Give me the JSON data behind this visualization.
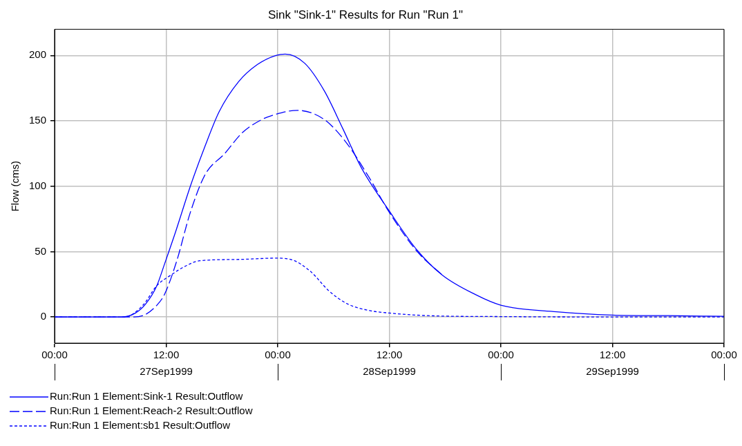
{
  "chart_data": {
    "type": "line",
    "title": "Sink \"Sink-1\" Results for Run \"Run 1\"",
    "ylabel": "Flow (cms)",
    "xlim": [
      "1999-09-27T00:00",
      "1999-09-30T00:00"
    ],
    "xticks": [
      {
        "value": "1999-09-27T00:00",
        "label": "00:00"
      },
      {
        "value": "1999-09-27T12:00",
        "label": "12:00"
      },
      {
        "value": "1999-09-28T00:00",
        "label": "00:00"
      },
      {
        "value": "1999-09-28T12:00",
        "label": "12:00"
      },
      {
        "value": "1999-09-29T00:00",
        "label": "00:00"
      },
      {
        "value": "1999-09-29T12:00",
        "label": "12:00"
      },
      {
        "value": "1999-09-30T00:00",
        "label": "00:00"
      }
    ],
    "ylim": [
      -20,
      220
    ],
    "yticks": [
      0,
      50,
      100,
      150,
      200
    ],
    "annotations": [
      "27Sep1999",
      "28Sep1999",
      "29Sep1999"
    ],
    "grid": true,
    "legend": "bottom",
    "marker": "none",
    "series": [
      {
        "name": "Run:Run 1 Element:Sink-1 Result:Outflow",
        "color": "#0000ff",
        "line_style": "solid",
        "x": [
          "1999-09-27T00:00",
          "1999-09-27T07:12",
          "1999-09-27T08:42",
          "1999-09-27T09:48",
          "1999-09-27T11:00",
          "1999-09-27T11:48",
          "1999-09-27T13:06",
          "1999-09-27T14:36",
          "1999-09-27T16:12",
          "1999-09-27T17:42",
          "1999-09-27T19:48",
          "1999-09-27T21:48",
          "1999-09-27T23:48",
          "1999-09-28T00:48",
          "1999-09-28T02:54",
          "1999-09-28T05:00",
          "1999-09-28T07:00",
          "1999-09-28T09:00",
          "1999-09-28T12:00",
          "1999-09-28T15:00",
          "1999-09-28T17:42",
          "1999-09-28T21:18",
          "1999-09-29T00:00",
          "1999-09-29T06:00",
          "1999-09-29T12:00",
          "1999-09-29T18:00",
          "1999-09-30T00:00"
        ],
        "values": [
          0,
          0,
          3,
          10,
          24,
          40,
          67,
          100,
          131,
          157,
          180,
          193,
          200,
          201,
          194,
          173,
          144,
          114,
          81,
          51,
          32,
          17,
          9,
          4,
          1.5,
          1,
          0.5
        ]
      },
      {
        "name": "Run:Run 1 Element:Reach-2 Result:Outflow",
        "color": "#0000ff",
        "line_style": "dashed",
        "x": [
          "1999-09-27T00:00",
          "1999-09-27T08:30",
          "1999-09-27T09:48",
          "1999-09-27T11:00",
          "1999-09-27T11:48",
          "1999-09-27T13:06",
          "1999-09-27T14:36",
          "1999-09-27T16:12",
          "1999-09-27T18:18",
          "1999-09-27T20:12",
          "1999-09-27T22:18",
          "1999-09-27T23:48",
          "1999-09-28T02:06",
          "1999-09-28T05:00",
          "1999-09-28T07:18",
          "1999-09-28T09:48",
          "1999-09-28T12:00",
          "1999-09-28T15:00",
          "1999-09-28T17:42"
        ],
        "values": [
          0,
          0,
          2,
          9,
          17,
          42,
          80,
          109,
          125,
          141,
          151,
          155,
          158,
          151,
          134,
          107,
          80,
          50,
          32
        ]
      },
      {
        "name": "Run:Run 1 Element:sb1 Result:Outflow",
        "color": "#0000ff",
        "line_style": "dotted",
        "x": [
          "1999-09-27T00:00",
          "1999-09-27T07:30",
          "1999-09-27T09:30",
          "1999-09-27T11:00",
          "1999-09-27T12:30",
          "1999-09-27T14:06",
          "1999-09-27T15:36",
          "1999-09-27T19:48",
          "1999-09-27T23:48",
          "1999-09-28T01:24",
          "1999-09-28T03:30",
          "1999-09-28T05:30",
          "1999-09-28T07:30",
          "1999-09-28T09:48",
          "1999-09-28T12:00",
          "1999-09-28T16:12",
          "1999-09-29T00:00",
          "1999-09-29T12:00",
          "1999-09-30T00:00"
        ],
        "values": [
          0,
          0,
          9,
          24,
          32,
          39,
          43,
          44,
          45,
          44,
          35,
          20,
          10,
          5,
          3,
          1,
          0.3,
          0,
          0
        ]
      }
    ]
  }
}
